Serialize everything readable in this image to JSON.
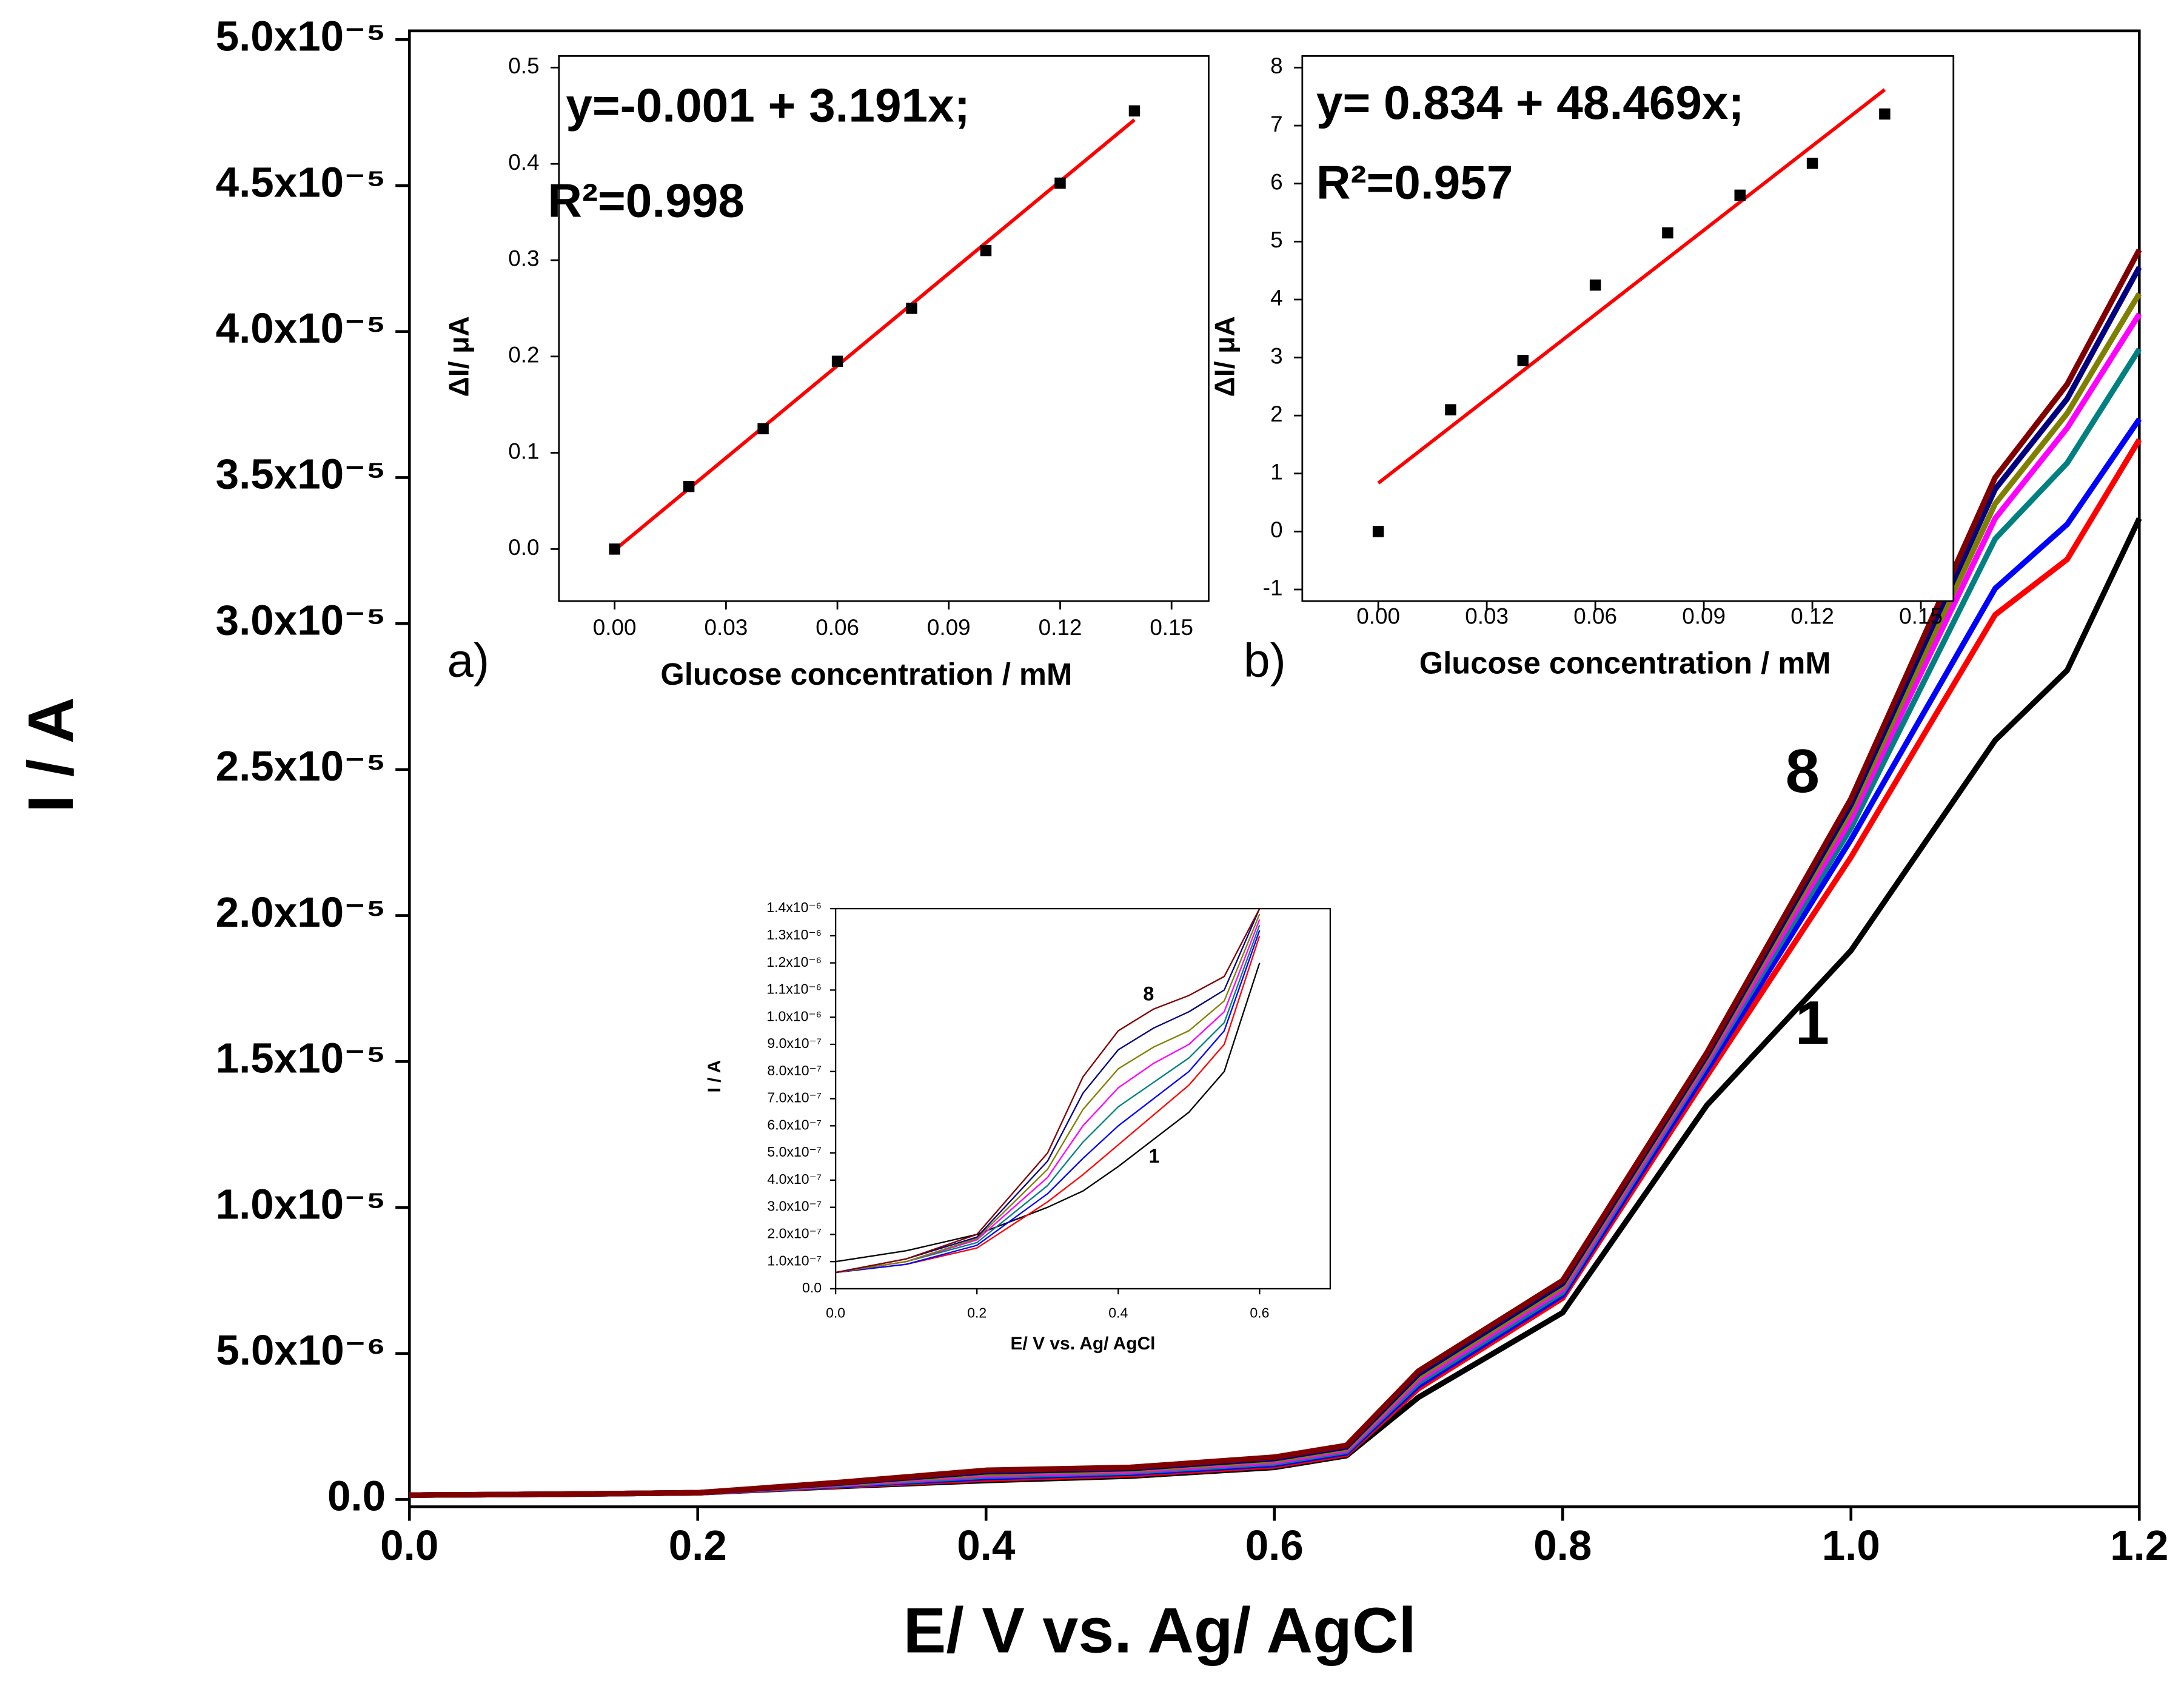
{
  "chart_data": [
    {
      "type": "line",
      "x_label": "E/ V vs. Ag/ AgCl",
      "y_label": "I / A",
      "x": [
        0,
        0.1,
        0.2,
        0.3,
        0.4,
        0.5,
        0.6,
        0.65,
        0.7,
        0.8,
        0.9,
        1.0,
        1.1,
        1.15,
        1.2
      ],
      "series": [
        {
          "color": "#000000",
          "values": [
            1.5e-07,
            1.8e-07,
            2.3e-07,
            4.5e-07,
            6.5e-07,
            8e-07,
            1.1e-06,
            1.5e-06,
            3.5e-06,
            6.4e-06,
            1.35e-05,
            1.88e-05,
            2.6e-05,
            2.84e-05,
            3.36e-05
          ]
        },
        {
          "color": "#ff0000",
          "values": [
            1.5e-07,
            1.8e-07,
            2.3e-07,
            4.7e-07,
            7e-07,
            8.5e-07,
            1.15e-06,
            1.55e-06,
            3.8e-06,
            6.9e-06,
            1.45e-05,
            2.2e-05,
            3.03e-05,
            3.22e-05,
            3.63e-05
          ]
        },
        {
          "color": "#0000ff",
          "values": [
            1.5e-07,
            1.8e-07,
            2.3e-07,
            4.9e-07,
            7.5e-07,
            9e-07,
            1.2e-06,
            1.6e-06,
            3.9e-06,
            7e-06,
            1.47e-05,
            2.26e-05,
            3.12e-05,
            3.34e-05,
            3.7e-05
          ]
        },
        {
          "color": "#008080",
          "values": [
            1.5e-07,
            1.8e-07,
            2.3e-07,
            5.1e-07,
            8e-07,
            9.4e-07,
            1.25e-06,
            1.65e-06,
            4e-06,
            7.1e-06,
            1.49e-05,
            2.3e-05,
            3.29e-05,
            3.55e-05,
            3.94e-05
          ]
        },
        {
          "color": "#ff00ff",
          "values": [
            1.5e-07,
            1.8e-07,
            2.3e-07,
            5.3e-07,
            8.5e-07,
            9.8e-07,
            1.3e-06,
            1.7e-06,
            4.1e-06,
            7.2e-06,
            1.5e-05,
            2.33e-05,
            3.36e-05,
            3.67e-05,
            4.06e-05
          ]
        },
        {
          "color": "#808000",
          "values": [
            1.5e-07,
            1.8e-07,
            2.3e-07,
            5.5e-07,
            9e-07,
            1.02e-06,
            1.35e-06,
            1.75e-06,
            4.2e-06,
            7.3e-06,
            1.51e-05,
            2.36e-05,
            3.41e-05,
            3.72e-05,
            4.13e-05
          ]
        },
        {
          "color": "#000080",
          "values": [
            1.5e-07,
            1.8e-07,
            2.3e-07,
            5.7e-07,
            9.5e-07,
            1.06e-06,
            1.4e-06,
            1.8e-06,
            4.3e-06,
            7.4e-06,
            1.52e-05,
            2.38e-05,
            3.46e-05,
            3.77e-05,
            4.22e-05
          ]
        },
        {
          "color": "#800000",
          "values": [
            1.5e-07,
            1.8e-07,
            2.3e-07,
            5.9e-07,
            1e-06,
            1.1e-06,
            1.45e-06,
            1.85e-06,
            4.4e-06,
            7.5e-06,
            1.53e-05,
            2.4e-05,
            3.5e-05,
            3.82e-05,
            4.28e-05
          ]
        }
      ],
      "annotations": [
        {
          "text": "8"
        },
        {
          "text": "1"
        }
      ],
      "xlim": [
        0,
        1.2
      ],
      "xticks": [
        {
          "value": 0,
          "label": "0.0"
        },
        0.2,
        0.4,
        0.6,
        0.8,
        {
          "value": 1,
          "label": "1.0"
        },
        1.2
      ],
      "ylim": [
        -2.5e-07,
        5.03e-05
      ],
      "yticks": [
        {
          "value": 0,
          "label": "0.0"
        },
        {
          "value": 5e-06,
          "label": "5.0x10⁻⁶"
        },
        {
          "value": 1e-05,
          "label": "1.0x10⁻⁵"
        },
        {
          "value": 1.5e-05,
          "label": "1.5x10⁻⁵"
        },
        {
          "value": 2e-05,
          "label": "2.0x10⁻⁵"
        },
        {
          "value": 2.5e-05,
          "label": "2.5x10⁻⁵"
        },
        {
          "value": 3e-05,
          "label": "3.0x10⁻⁵"
        },
        {
          "value": 3.5e-05,
          "label": "3.5x10⁻⁵"
        },
        {
          "value": 4e-05,
          "label": "4.0x10⁻⁵"
        },
        {
          "value": 4.5e-05,
          "label": "4.5x10⁻⁵"
        },
        {
          "value": 5e-05,
          "label": "5.0x10⁻⁵"
        }
      ]
    },
    {
      "type": "scatter",
      "panel_label": "a)",
      "x_label": "Glucose concentration / mM",
      "y_label": "ΔI/ μA",
      "equation": "y=-0.001 + 3.191x;",
      "r2": "R²=0.998",
      "x": [
        0,
        0.02,
        0.04,
        0.06,
        0.08,
        0.1,
        0.12,
        0.14
      ],
      "values": [
        0,
        0.065,
        0.125,
        0.195,
        0.25,
        0.31,
        0.38,
        0.455
      ],
      "color": "#000000",
      "fit": {
        "intercept": -0.001,
        "slope": 3.191,
        "color": "#ff0000"
      },
      "xlim": [
        -0.015,
        0.16
      ],
      "xticks": [
        {
          "value": 0,
          "label": "0.00"
        },
        {
          "value": 0.03,
          "label": "0.03"
        },
        {
          "value": 0.06,
          "label": "0.06"
        },
        {
          "value": 0.09,
          "label": "0.09"
        },
        {
          "value": 0.12,
          "label": "0.12"
        },
        {
          "value": 0.15,
          "label": "0.15"
        }
      ],
      "ylim": [
        -0.054,
        0.512
      ],
      "yticks": [
        {
          "value": 0,
          "label": "0.0"
        },
        0.1,
        0.2,
        0.3,
        0.4,
        0.5
      ]
    },
    {
      "type": "scatter",
      "panel_label": "b)",
      "x_label": "Glucose concentration / mM",
      "y_label": "ΔI/ μA",
      "equation": "y= 0.834 + 48.469x;",
      "r2": "R²=0.957",
      "x": [
        0,
        0.02,
        0.04,
        0.06,
        0.08,
        0.1,
        0.12,
        0.14
      ],
      "values": [
        0,
        2.1,
        2.95,
        4.25,
        5.15,
        5.8,
        6.35,
        7.2
      ],
      "color": "#000000",
      "fit": {
        "intercept": 0.834,
        "slope": 48.469,
        "color": "#ff0000"
      },
      "xlim": [
        -0.021,
        0.159
      ],
      "xticks": [
        {
          "value": 0,
          "label": "0.00"
        },
        {
          "value": 0.03,
          "label": "0.03"
        },
        {
          "value": 0.06,
          "label": "0.06"
        },
        {
          "value": 0.09,
          "label": "0.09"
        },
        {
          "value": 0.12,
          "label": "0.12"
        },
        {
          "value": 0.15,
          "label": "0.15"
        }
      ],
      "ylim": [
        -1.2,
        8.2
      ],
      "yticks": [
        -1,
        0,
        1,
        2,
        3,
        4,
        5,
        6,
        7,
        8
      ]
    },
    {
      "type": "line",
      "x_label": "E/ V vs. Ag/ AgCl",
      "y_label": "I / A",
      "x": [
        0,
        0.1,
        0.2,
        0.3,
        0.35,
        0.4,
        0.45,
        0.5,
        0.55,
        0.6
      ],
      "series": [
        {
          "color": "#000000",
          "values": [
            1e-07,
            1.4e-07,
            2e-07,
            3e-07,
            3.6e-07,
            4.5e-07,
            5.5e-07,
            6.5e-07,
            8e-07,
            1.2e-06
          ]
        },
        {
          "color": "#ff0000",
          "values": [
            6e-08,
            9e-08,
            1.5e-07,
            3.2e-07,
            4.2e-07,
            5.3e-07,
            6.4e-07,
            7.5e-07,
            9e-07,
            1.3e-06
          ]
        },
        {
          "color": "#0000ff",
          "values": [
            6e-08,
            9e-08,
            1.6e-07,
            3.5e-07,
            4.8e-07,
            6e-07,
            7e-07,
            8e-07,
            9.5e-07,
            1.32e-06
          ]
        },
        {
          "color": "#008080",
          "values": [
            6e-08,
            1e-07,
            1.7e-07,
            3.8e-07,
            5.4e-07,
            6.7e-07,
            7.6e-07,
            8.5e-07,
            9.8e-07,
            1.34e-06
          ]
        },
        {
          "color": "#ff00ff",
          "values": [
            6e-08,
            1e-07,
            1.8e-07,
            4.1e-07,
            6e-07,
            7.4e-07,
            8.3e-07,
            9e-07,
            1.02e-06,
            1.36e-06
          ]
        },
        {
          "color": "#808000",
          "values": [
            6e-08,
            1e-07,
            1.85e-07,
            4.4e-07,
            6.6e-07,
            8.1e-07,
            8.9e-07,
            9.5e-07,
            1.06e-06,
            1.38e-06
          ]
        },
        {
          "color": "#000080",
          "values": [
            6e-08,
            1.1e-07,
            1.9e-07,
            4.7e-07,
            7.2e-07,
            8.8e-07,
            9.6e-07,
            1.02e-06,
            1.1e-06,
            1.4e-06
          ]
        },
        {
          "color": "#800000",
          "values": [
            6e-08,
            1.1e-07,
            2e-07,
            5e-07,
            7.8e-07,
            9.5e-07,
            1.03e-06,
            1.08e-06,
            1.15e-06,
            1.4e-06
          ]
        }
      ],
      "annotations": [
        {
          "text": "8"
        },
        {
          "text": "1"
        }
      ],
      "xlim": [
        0,
        0.7
      ],
      "xticks": [
        {
          "value": 0,
          "label": "0.0"
        },
        0.2,
        0.4,
        0.6
      ],
      "ylim": [
        0,
        1.4e-06
      ],
      "yticks": [
        {
          "value": 0,
          "label": "0.0"
        },
        {
          "value": 1e-07,
          "label": "1.0x10⁻⁷"
        },
        {
          "value": 2e-07,
          "label": "2.0x10⁻⁷"
        },
        {
          "value": 3e-07,
          "label": "3.0x10⁻⁷"
        },
        {
          "value": 4e-07,
          "label": "4.0x10⁻⁷"
        },
        {
          "value": 5e-07,
          "label": "5.0x10⁻⁷"
        },
        {
          "value": 6e-07,
          "label": "6.0x10⁻⁷"
        },
        {
          "value": 7e-07,
          "label": "7.0x10⁻⁷"
        },
        {
          "value": 8e-07,
          "label": "8.0x10⁻⁷"
        },
        {
          "value": 9e-07,
          "label": "9.0x10⁻⁷"
        },
        {
          "value": 1e-06,
          "label": "1.0x10⁻⁶"
        },
        {
          "value": 1.1e-06,
          "label": "1.1x10⁻⁶"
        },
        {
          "value": 1.2e-06,
          "label": "1.2x10⁻⁶"
        },
        {
          "value": 1.3e-06,
          "label": "1.3x10⁻⁶"
        },
        {
          "value": 1.4e-06,
          "label": "1.4x10⁻⁶"
        }
      ]
    }
  ]
}
